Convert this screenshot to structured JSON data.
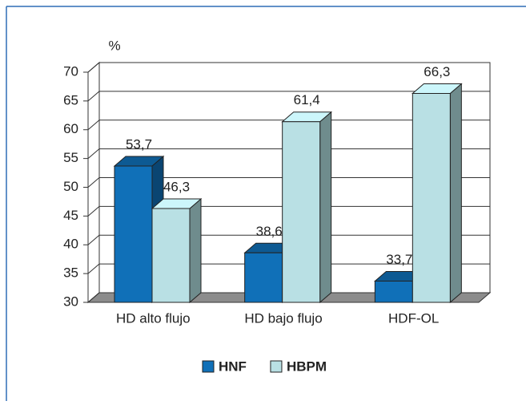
{
  "chart_data": {
    "type": "bar3d",
    "ylabel": "%",
    "categories": [
      "HD alto flujo",
      "HD bajo flujo",
      "HDF-OL"
    ],
    "series": [
      {
        "name": "HNF",
        "color": "#1070b8",
        "values": [
          53.7,
          38.6,
          33.7
        ],
        "value_labels": [
          "53,7",
          "38,6",
          "33,7"
        ]
      },
      {
        "name": "HBPM",
        "color": "#b9e0e4",
        "values": [
          46.3,
          61.4,
          66.3
        ],
        "value_labels": [
          "46,3",
          "61,4",
          "66,3"
        ]
      }
    ],
    "ylim": [
      30,
      70
    ],
    "yticks": [
      30,
      35,
      40,
      45,
      50,
      55,
      60,
      65,
      70
    ],
    "grid": true,
    "legend": "bottom"
  }
}
